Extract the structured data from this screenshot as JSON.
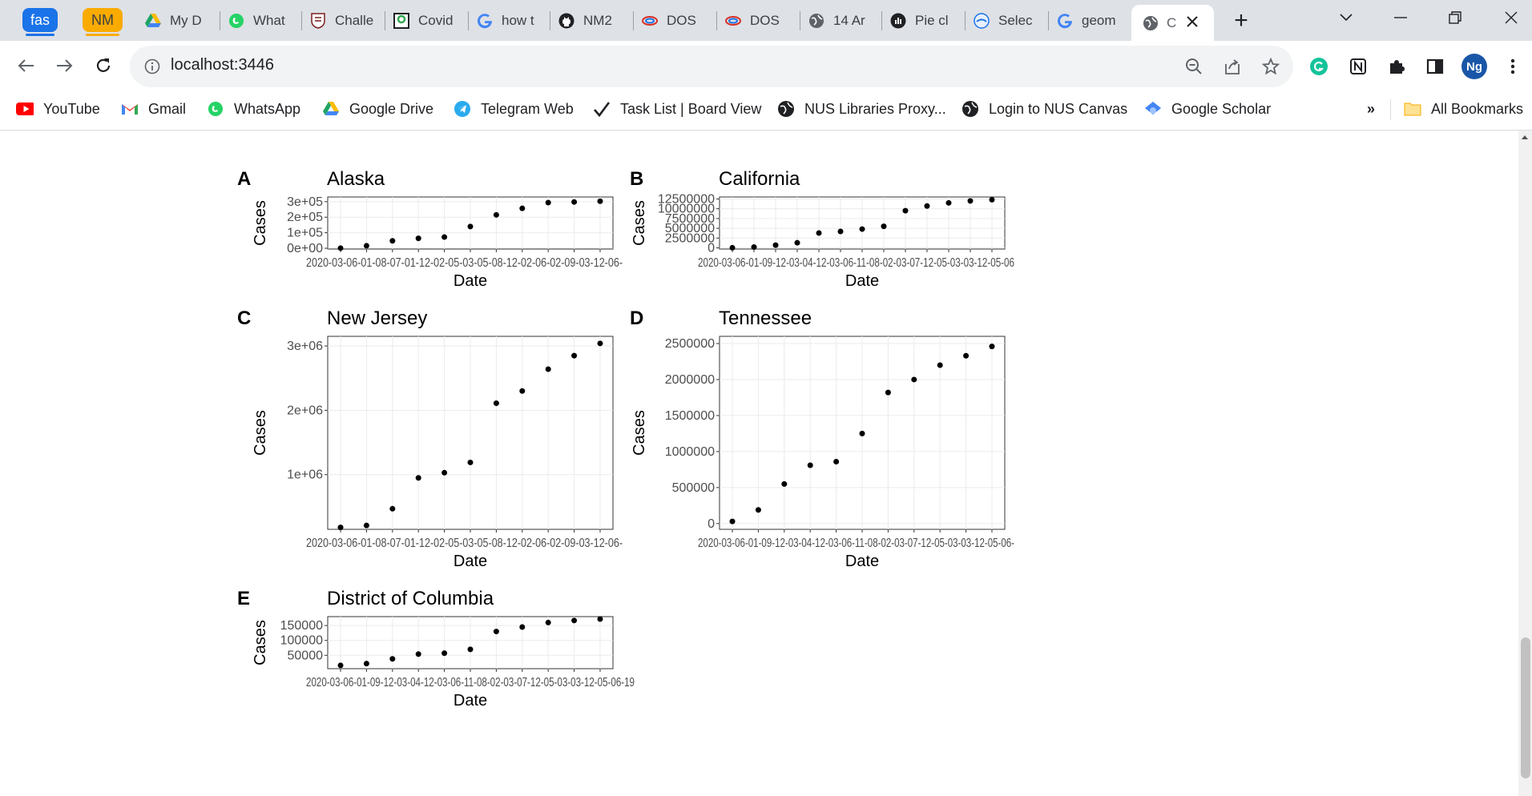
{
  "browser": {
    "tab_groups": [
      {
        "label": "fas",
        "bg": "#1a73e8",
        "fg": "#ffffff",
        "bar": "#1a73e8"
      },
      {
        "label": "NM",
        "bg": "#f9ab00",
        "fg": "#3c4043",
        "bar": "#f9ab00"
      }
    ],
    "tabs": [
      {
        "title": "My D",
        "icon": "google-drive-icon"
      },
      {
        "title": "What",
        "icon": "whatsapp-icon"
      },
      {
        "title": "Challe",
        "icon": "crest-icon"
      },
      {
        "title": "Covid",
        "icon": "rstudio-icon"
      },
      {
        "title": "how t",
        "icon": "google-icon"
      },
      {
        "title": "NM2",
        "icon": "github-icon"
      },
      {
        "title": "DOS",
        "icon": "dos-icon"
      },
      {
        "title": "DOS",
        "icon": "dos-icon"
      },
      {
        "title": "14 Ar",
        "icon": "globe-icon"
      },
      {
        "title": "Pie cl",
        "icon": "chart-icon"
      },
      {
        "title": "Selec",
        "icon": "select-icon"
      },
      {
        "title": "geom",
        "icon": "google-icon"
      }
    ],
    "active_tab": {
      "title": "C",
      "icon": "globe-icon"
    },
    "new_tab_glyph": "+",
    "url": "localhost:3446",
    "profile_initials": "Ng",
    "bookmarks": [
      {
        "label": "YouTube",
        "icon": "youtube-icon"
      },
      {
        "label": "Gmail",
        "icon": "gmail-icon"
      },
      {
        "label": "WhatsApp",
        "icon": "whatsapp-icon"
      },
      {
        "label": "Google Drive",
        "icon": "google-drive-icon"
      },
      {
        "label": "Telegram Web",
        "icon": "telegram-icon"
      },
      {
        "label": "Task List | Board View",
        "icon": "checkmark-icon"
      },
      {
        "label": "NUS Libraries Proxy...",
        "icon": "globe-icon"
      },
      {
        "label": "Login to NUS Canvas",
        "icon": "globe-icon"
      },
      {
        "label": "Google Scholar",
        "icon": "scholar-icon"
      }
    ],
    "overflow_glyph": "»",
    "all_bookmarks_label": "All Bookmarks"
  },
  "chart_data": [
    {
      "panel_letter": "A",
      "title": "Alaska",
      "type": "scatter",
      "xlabel": "Date",
      "ylabel": "Cases",
      "x_tick_overlap_label": "2020-03-06-01-08-07-01-12-02-05-03-05-08-12-02-06-02-09-03-12-06-",
      "ylim": [
        -5000,
        330000
      ],
      "yticks": [
        0,
        100000,
        200000,
        300000
      ],
      "ytick_labels": [
        "0e+00",
        "1e+05",
        "2e+05",
        "3e+05"
      ],
      "values": [
        1000,
        16000,
        48000,
        64000,
        72000,
        140000,
        215000,
        257000,
        294000,
        298000,
        303000
      ]
    },
    {
      "panel_letter": "B",
      "title": "California",
      "type": "scatter",
      "xlabel": "Date",
      "ylabel": "Cases",
      "x_tick_overlap_label": "2020-03-06-01-09-12-03-04-12-03-06-11-08-02-03-07-12-05-03-03-12-05-06",
      "ylim": [
        -300000,
        13000000
      ],
      "yticks": [
        0,
        2500000,
        5000000,
        7500000,
        10000000,
        12500000
      ],
      "ytick_labels": [
        "0",
        "2500000",
        "5000000",
        "7500000",
        "10000000",
        "12500000"
      ],
      "values": [
        20000,
        200000,
        700000,
        1300000,
        3800000,
        4200000,
        4800000,
        5500000,
        9500000,
        10700000,
        11500000,
        12000000,
        12300000
      ]
    },
    {
      "panel_letter": "C",
      "title": "New Jersey",
      "type": "scatter",
      "xlabel": "Date",
      "ylabel": "Cases",
      "x_tick_overlap_label": "2020-03-06-01-08-07-01-12-02-05-03-05-08-12-02-06-02-09-03-12-06-",
      "ylim": [
        150000,
        3150000
      ],
      "yticks": [
        1000000,
        2000000,
        3000000
      ],
      "ytick_labels": [
        "1e+06",
        "2e+06",
        "3e+06"
      ],
      "values": [
        180000,
        210000,
        470000,
        950000,
        1030000,
        1190000,
        2110000,
        2300000,
        2640000,
        2850000,
        3040000
      ]
    },
    {
      "panel_letter": "D",
      "title": "Tennessee",
      "type": "scatter",
      "xlabel": "Date",
      "ylabel": "Cases",
      "x_tick_overlap_label": "2020-03-06-01-09-12-03-04-12-03-06-11-08-02-03-07-12-05-03-03-12-05-06-",
      "ylim": [
        -80000,
        2600000
      ],
      "yticks": [
        0,
        500000,
        1000000,
        1500000,
        2000000,
        2500000
      ],
      "ytick_labels": [
        "0",
        "500000",
        "1000000",
        "1500000",
        "2000000",
        "2500000"
      ],
      "values": [
        30000,
        190000,
        550000,
        810000,
        860000,
        1250000,
        1820000,
        2000000,
        2200000,
        2330000,
        2460000
      ]
    },
    {
      "panel_letter": "E",
      "title": "District of Columbia",
      "type": "scatter",
      "xlabel": "Date",
      "ylabel": "Cases",
      "x_tick_overlap_label": "2020-03-06-01-09-12-03-04-12-03-06-11-08-02-03-07-12-05-03-03-12-05-06-19",
      "ylim": [
        5000,
        180000
      ],
      "yticks": [
        50000,
        100000,
        150000
      ],
      "ytick_labels": [
        "50000",
        "100000",
        "150000"
      ],
      "values": [
        16000,
        22000,
        38000,
        54000,
        57000,
        70000,
        130000,
        145000,
        160000,
        167000,
        172000
      ]
    }
  ]
}
